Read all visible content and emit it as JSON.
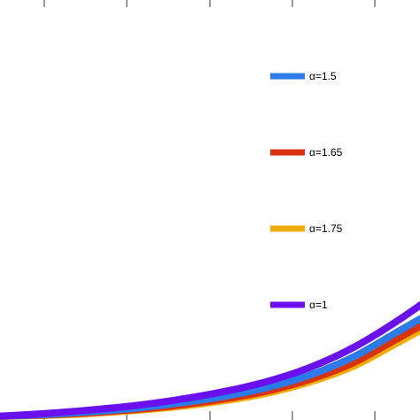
{
  "chart_data": {
    "type": "line",
    "title": "",
    "xlabel": "",
    "ylabel": "",
    "xlim": [
      0,
      1
    ],
    "ylim": [
      0,
      1
    ],
    "grid": false,
    "legend_placement": "right, vertical column",
    "series": [
      {
        "name": "α=1.5",
        "color": "#2b7bea",
        "x": [
          0,
          0.1,
          0.2,
          0.3,
          0.4,
          0.5,
          0.6,
          0.7,
          0.8,
          0.9,
          1.0
        ],
        "y": [
          0.0,
          0.004,
          0.01,
          0.018,
          0.03,
          0.045,
          0.066,
          0.096,
          0.14,
          0.2,
          0.26
        ]
      },
      {
        "name": "α=1.65",
        "color": "#d9320c",
        "x": [
          0,
          0.1,
          0.2,
          0.3,
          0.4,
          0.5,
          0.6,
          0.7,
          0.8,
          0.9,
          1.0
        ],
        "y": [
          0.0,
          0.003,
          0.008,
          0.015,
          0.025,
          0.039,
          0.058,
          0.086,
          0.126,
          0.184,
          0.242
        ]
      },
      {
        "name": "α=1.75",
        "color": "#f0ac08",
        "x": [
          0,
          0.1,
          0.2,
          0.3,
          0.4,
          0.5,
          0.6,
          0.7,
          0.8,
          0.9,
          1.0
        ],
        "y": [
          0.0,
          0.002,
          0.006,
          0.013,
          0.022,
          0.035,
          0.053,
          0.08,
          0.118,
          0.174,
          0.232
        ]
      },
      {
        "name": "α=1",
        "color": "#6a10ee",
        "x": [
          0,
          0.1,
          0.2,
          0.3,
          0.4,
          0.5,
          0.6,
          0.7,
          0.8,
          0.9,
          1.0
        ],
        "y": [
          0.0,
          0.006,
          0.014,
          0.024,
          0.038,
          0.056,
          0.08,
          0.114,
          0.162,
          0.226,
          0.3
        ]
      }
    ]
  }
}
